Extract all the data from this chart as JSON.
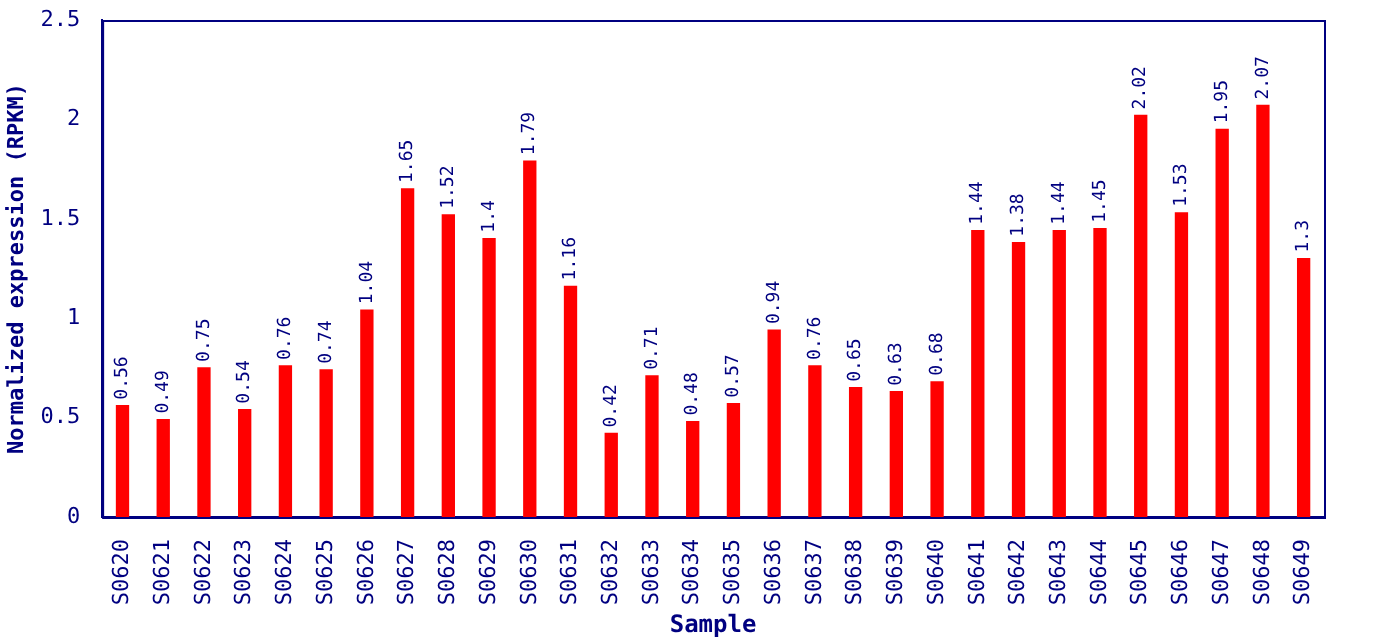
{
  "chart_data": {
    "type": "bar",
    "xlabel": "Sample",
    "ylabel": "Normalized expression (RPKM)",
    "categories": [
      "S0620",
      "S0621",
      "S0622",
      "S0623",
      "S0624",
      "S0625",
      "S0626",
      "S0627",
      "S0628",
      "S0629",
      "S0630",
      "S0631",
      "S0632",
      "S0633",
      "S0634",
      "S0635",
      "S0636",
      "S0637",
      "S0638",
      "S0639",
      "S0640",
      "S0641",
      "S0642",
      "S0643",
      "S0644",
      "S0645",
      "S0646",
      "S0647",
      "S0648",
      "S0649"
    ],
    "values": [
      0.56,
      0.49,
      0.75,
      0.54,
      0.76,
      0.74,
      1.04,
      1.65,
      1.52,
      1.4,
      1.79,
      1.16,
      0.42,
      0.71,
      0.48,
      0.57,
      0.94,
      0.76,
      0.65,
      0.63,
      0.68,
      1.44,
      1.38,
      1.44,
      1.45,
      2.02,
      1.53,
      1.95,
      2.07,
      1.3
    ],
    "color": "#ff0000",
    "ylim": [
      0,
      2.5
    ],
    "yticks": [
      0,
      0.5,
      1,
      1.5,
      2,
      2.5
    ],
    "data_labels": true,
    "grid": false,
    "legend": false
  }
}
